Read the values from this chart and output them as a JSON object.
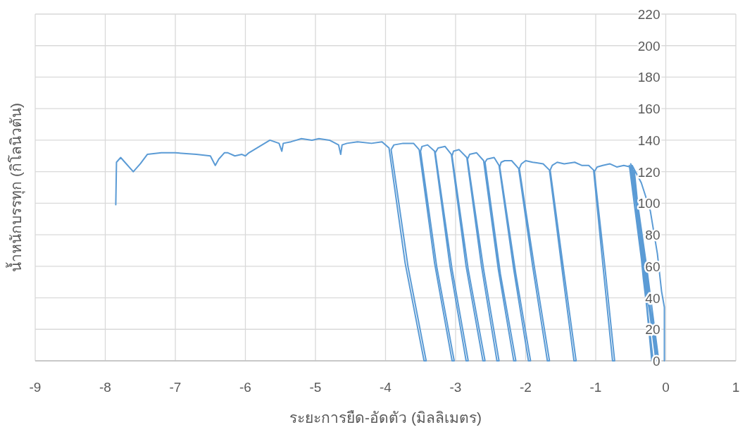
{
  "chart_data": {
    "type": "line",
    "xlabel": "ระยะการยืด-อัดตัว (มิลลิเมตร)",
    "ylabel": "น้ำหนักบรรทุก  (กิโลนิวตัน)",
    "xlim": [
      -9,
      1
    ],
    "ylim": [
      0,
      220
    ],
    "xticks": [
      -9,
      -8,
      -7,
      -6,
      -5,
      -4,
      -3,
      -2,
      -1,
      0,
      1
    ],
    "yticks": [
      0,
      20,
      40,
      60,
      80,
      100,
      120,
      140,
      160,
      180,
      200,
      220
    ],
    "grid": true,
    "series": [
      {
        "color": "#5b9bd5",
        "x": [
          -0.02,
          -0.02,
          -0.06,
          -0.12,
          -0.22,
          -0.35,
          -0.48,
          -0.32,
          -0.2,
          -0.33,
          -0.45,
          -0.3,
          -0.14,
          -0.3,
          -0.5,
          -0.28,
          -0.1,
          -0.28,
          -0.47,
          -0.32,
          -0.18,
          -0.34,
          -0.52,
          -0.3,
          -0.12,
          -0.3,
          -0.5,
          -0.6,
          -0.7,
          -0.8,
          -0.9,
          -0.98,
          -1.02,
          -0.87,
          -0.73,
          -0.76,
          -0.9,
          -1.03,
          -1.1,
          -1.2,
          -1.3,
          -1.45,
          -1.55,
          -1.62,
          -1.65,
          -1.45,
          -1.28,
          -1.31,
          -1.48,
          -1.66,
          -1.75,
          -1.9,
          -2.0,
          -2.06,
          -2.09,
          -1.87,
          -1.66,
          -1.69,
          -1.9,
          -2.1,
          -2.2,
          -2.3,
          -2.35,
          -2.37,
          -2.14,
          -1.93,
          -1.96,
          -2.17,
          -2.38,
          -2.45,
          -2.55,
          -2.58,
          -2.36,
          -2.14,
          -2.17,
          -2.39,
          -2.6,
          -2.7,
          -2.8,
          -2.83,
          -2.6,
          -2.38,
          -2.41,
          -2.63,
          -2.84,
          -2.95,
          -3.03,
          -3.05,
          -2.82,
          -2.58,
          -2.61,
          -2.85,
          -3.06,
          -3.15,
          -3.25,
          -3.29,
          -3.05,
          -2.82,
          -2.85,
          -3.08,
          -3.3,
          -3.4,
          -3.48,
          -3.5,
          -3.27,
          -3.02,
          -3.05,
          -3.3,
          -3.52,
          -3.6,
          -3.75,
          -3.88,
          -3.92,
          -3.68,
          -3.42,
          -3.45,
          -3.72,
          -3.95,
          -4.05,
          -4.2,
          -4.4,
          -4.55,
          -4.62,
          -4.64,
          -4.67,
          -4.8,
          -4.95,
          -5.05,
          -5.2,
          -5.35,
          -5.46,
          -5.48,
          -5.52,
          -5.65,
          -5.8,
          -5.95,
          -6.0,
          -6.05,
          -6.15,
          -6.25,
          -6.3,
          -6.38,
          -6.43,
          -6.5,
          -6.7,
          -7.0,
          -7.2,
          -7.4,
          -7.5,
          -7.6,
          -7.72,
          -7.78,
          -7.84,
          -7.85
        ],
        "values": [
          0,
          34,
          44,
          68,
          95,
          113,
          124,
          60,
          0,
          62,
          121,
          55,
          0,
          65,
          125,
          50,
          0,
          62,
          121,
          52,
          0,
          62,
          124,
          50,
          0,
          60,
          123,
          124,
          123,
          125,
          124,
          123,
          120,
          60,
          0,
          0,
          62,
          121,
          124,
          124,
          126,
          125,
          126,
          124,
          121,
          55,
          0,
          0,
          58,
          121,
          125,
          126,
          127,
          125,
          122,
          58,
          0,
          0,
          60,
          122,
          127,
          127,
          126,
          123,
          55,
          0,
          0,
          58,
          124,
          129,
          128,
          126,
          55,
          0,
          0,
          58,
          127,
          132,
          131,
          128,
          58,
          0,
          0,
          60,
          129,
          134,
          133,
          130,
          58,
          0,
          0,
          60,
          131,
          136,
          135,
          132,
          58,
          0,
          0,
          60,
          133,
          137,
          136,
          133,
          60,
          0,
          0,
          62,
          134,
          138,
          138,
          137,
          134,
          60,
          0,
          0,
          62,
          135,
          139,
          138,
          139,
          138,
          137,
          131,
          137,
          140,
          141,
          140,
          141,
          139,
          138,
          133,
          138,
          140,
          136,
          132,
          130,
          131,
          130,
          132,
          132,
          128,
          124,
          130,
          131,
          132,
          132,
          131,
          125,
          120,
          126,
          129,
          126,
          99
        ]
      }
    ]
  }
}
